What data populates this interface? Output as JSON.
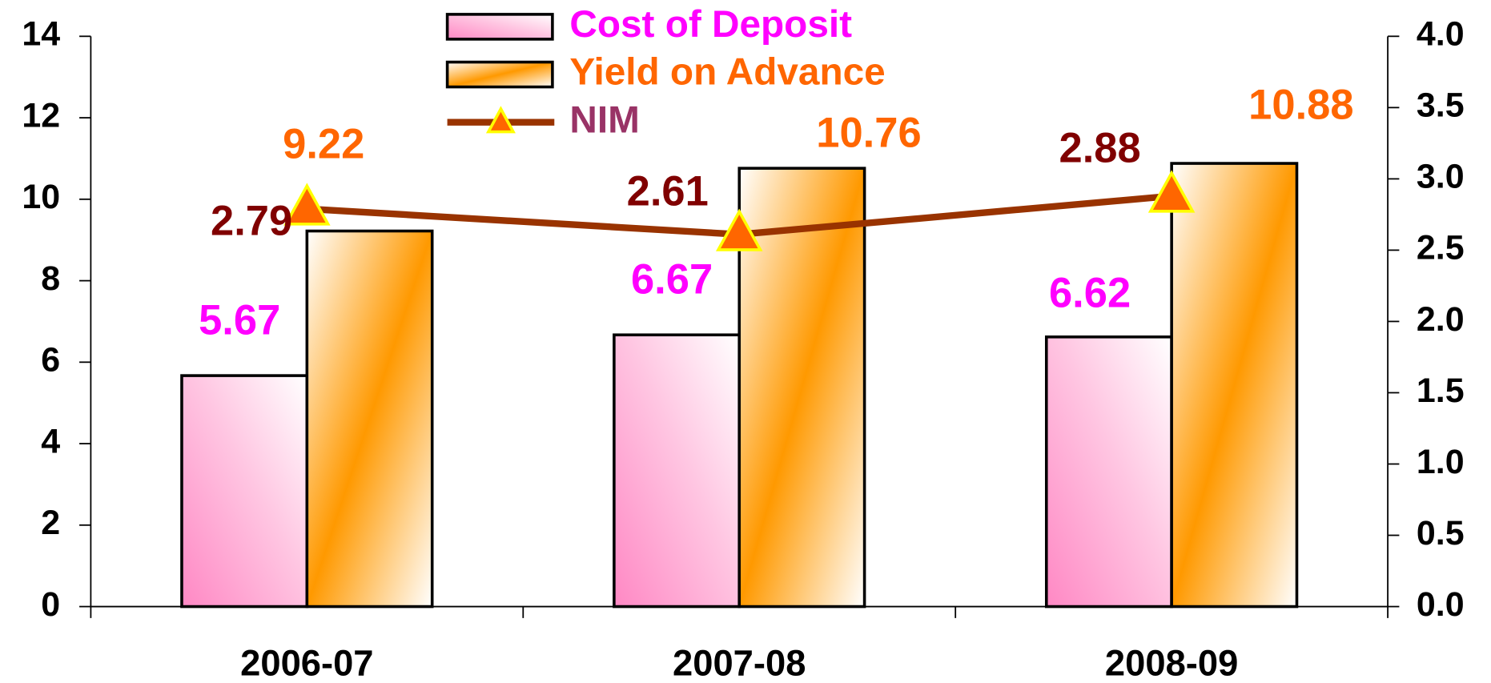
{
  "chart_data": {
    "type": "bar",
    "categories": [
      "2006-07",
      "2007-08",
      "2008-09"
    ],
    "series": [
      {
        "name": "Cost of Deposit",
        "color": "#ff00ff",
        "values": [
          5.67,
          6.67,
          6.62
        ]
      },
      {
        "name": "Yield on Advance",
        "color": "#ff6600",
        "values": [
          9.22,
          10.76,
          10.88
        ]
      },
      {
        "name": "NIM",
        "color": "#993300",
        "type": "line",
        "axis": "y2",
        "values": [
          2.79,
          2.61,
          2.88
        ]
      }
    ],
    "ylim": [
      0,
      14
    ],
    "yticks": [
      0,
      2,
      4,
      6,
      8,
      10,
      12,
      14
    ],
    "y2lim": [
      0,
      4
    ],
    "y2ticks": [
      {
        "value": 0,
        "label": "0.0"
      },
      {
        "value": 0.5,
        "label": "0.5"
      },
      {
        "value": 1,
        "label": "1.0"
      },
      {
        "value": 1.5,
        "label": "1.5"
      },
      {
        "value": 2,
        "label": "2.0"
      },
      {
        "value": 2.5,
        "label": "2.5"
      },
      {
        "value": 3,
        "label": "3.0"
      },
      {
        "value": 3.5,
        "label": "3.5"
      },
      {
        "value": 4,
        "label": "4.0"
      }
    ],
    "legend": "top"
  }
}
